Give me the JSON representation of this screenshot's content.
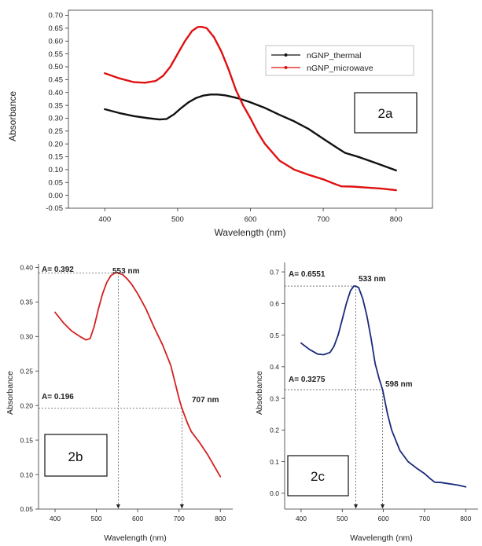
{
  "chart_data": [
    {
      "id": "2a",
      "type": "line",
      "panel_label": "2a",
      "xlabel": "Wavelength (nm)",
      "ylabel": "Absorbance",
      "xlim": [
        350,
        850
      ],
      "ylim": [
        -0.05,
        0.72
      ],
      "xticks": [
        400,
        500,
        600,
        700,
        800
      ],
      "yticks": [
        -0.05,
        0.0,
        0.05,
        0.1,
        0.15,
        0.2,
        0.25,
        0.3,
        0.35,
        0.4,
        0.45,
        0.5,
        0.55,
        0.6,
        0.65,
        0.7
      ],
      "ytick_labels": [
        "-0.05",
        "0.00",
        "0.05",
        "0.10",
        "0.15",
        "0.20",
        "0.25",
        "0.30",
        "0.35",
        "0.40",
        "0.45",
        "0.50",
        "0.55",
        "0.60",
        "0.65",
        "0.70"
      ],
      "legend_position": "top-right",
      "series": [
        {
          "name": "nGNP_thermal",
          "color": "#111111",
          "x": [
            400,
            420,
            440,
            460,
            475,
            485,
            495,
            505,
            515,
            525,
            535,
            545,
            555,
            565,
            575,
            585,
            600,
            620,
            640,
            660,
            680,
            700,
            720,
            730,
            750,
            770,
            800
          ],
          "y": [
            0.335,
            0.32,
            0.308,
            0.3,
            0.295,
            0.297,
            0.315,
            0.34,
            0.362,
            0.378,
            0.388,
            0.392,
            0.392,
            0.389,
            0.383,
            0.376,
            0.362,
            0.34,
            0.313,
            0.288,
            0.258,
            0.22,
            0.183,
            0.165,
            0.148,
            0.128,
            0.097
          ]
        },
        {
          "name": "nGNP_microwave",
          "color": "#e01010",
          "x": [
            400,
            420,
            440,
            455,
            470,
            480,
            490,
            500,
            510,
            520,
            528,
            533,
            540,
            550,
            560,
            570,
            580,
            590,
            600,
            610,
            620,
            640,
            660,
            680,
            700,
            715,
            725,
            740,
            760,
            780,
            800
          ],
          "y": [
            0.475,
            0.455,
            0.44,
            0.438,
            0.445,
            0.465,
            0.5,
            0.55,
            0.6,
            0.64,
            0.655,
            0.6551,
            0.65,
            0.615,
            0.56,
            0.49,
            0.41,
            0.35,
            0.3,
            0.245,
            0.2,
            0.135,
            0.1,
            0.08,
            0.062,
            0.045,
            0.035,
            0.034,
            0.03,
            0.026,
            0.02
          ]
        }
      ]
    },
    {
      "id": "2b",
      "type": "line",
      "panel_label": "2b",
      "xlabel": "Wavelength (nm)",
      "ylabel": "Absorbance",
      "xlim": [
        360,
        830
      ],
      "ylim": [
        0.05,
        0.405
      ],
      "xticks": [
        400,
        500,
        600,
        700,
        800
      ],
      "yticks": [
        0.05,
        0.1,
        0.15,
        0.2,
        0.25,
        0.3,
        0.35,
        0.4
      ],
      "ytick_labels": [
        "0.05",
        "0.10",
        "0.15",
        "0.20",
        "0.25",
        "0.30",
        "0.35",
        "0.40"
      ],
      "annotations": {
        "a_peak": "A= 0.392",
        "peak_wl": "553 nm",
        "a_half": "A= 0.196",
        "half_wl": "707 nm"
      },
      "markers": {
        "peak_x": 553,
        "peak_y": 0.392,
        "half_x": 707,
        "half_y": 0.196
      },
      "series": [
        {
          "color": "#d42020",
          "x": [
            400,
            420,
            440,
            460,
            475,
            485,
            495,
            505,
            515,
            525,
            535,
            545,
            553,
            565,
            575,
            585,
            600,
            620,
            640,
            660,
            680,
            700,
            707,
            720,
            730,
            750,
            770,
            800
          ],
          "y": [
            0.335,
            0.32,
            0.308,
            0.3,
            0.295,
            0.297,
            0.315,
            0.34,
            0.362,
            0.378,
            0.388,
            0.392,
            0.392,
            0.389,
            0.383,
            0.376,
            0.362,
            0.34,
            0.313,
            0.288,
            0.258,
            0.21,
            0.196,
            0.175,
            0.162,
            0.146,
            0.128,
            0.097
          ]
        }
      ]
    },
    {
      "id": "2c",
      "type": "line",
      "panel_label": "2c",
      "xlabel": "Wavelength (nm)",
      "ylabel": "Absorbance",
      "xlim": [
        360,
        830
      ],
      "ylim": [
        -0.05,
        0.73
      ],
      "xticks": [
        400,
        500,
        600,
        700,
        800
      ],
      "yticks": [
        0.0,
        0.1,
        0.2,
        0.3,
        0.4,
        0.5,
        0.6,
        0.7
      ],
      "ytick_labels": [
        "0.0",
        "0.1",
        "0.2",
        "0.3",
        "0.4",
        "0.5",
        "0.6",
        "0.7"
      ],
      "annotations": {
        "a_peak": "A= 0.6551",
        "peak_wl": "533 nm",
        "a_half": "A= 0.3275",
        "half_wl": "598 nm"
      },
      "markers": {
        "peak_x": 533,
        "peak_y": 0.6551,
        "half_x": 598,
        "half_y": 0.3275
      },
      "series": [
        {
          "color": "#1a2a7a",
          "x": [
            400,
            420,
            440,
            455,
            470,
            480,
            490,
            500,
            510,
            520,
            528,
            533,
            540,
            550,
            560,
            570,
            580,
            590,
            598,
            610,
            620,
            640,
            660,
            680,
            700,
            715,
            725,
            740,
            760,
            780,
            800
          ],
          "y": [
            0.475,
            0.455,
            0.44,
            0.438,
            0.445,
            0.465,
            0.5,
            0.55,
            0.6,
            0.64,
            0.655,
            0.6551,
            0.65,
            0.615,
            0.56,
            0.49,
            0.41,
            0.36,
            0.3275,
            0.25,
            0.2,
            0.135,
            0.1,
            0.08,
            0.062,
            0.045,
            0.035,
            0.034,
            0.03,
            0.026,
            0.02
          ]
        }
      ]
    }
  ]
}
